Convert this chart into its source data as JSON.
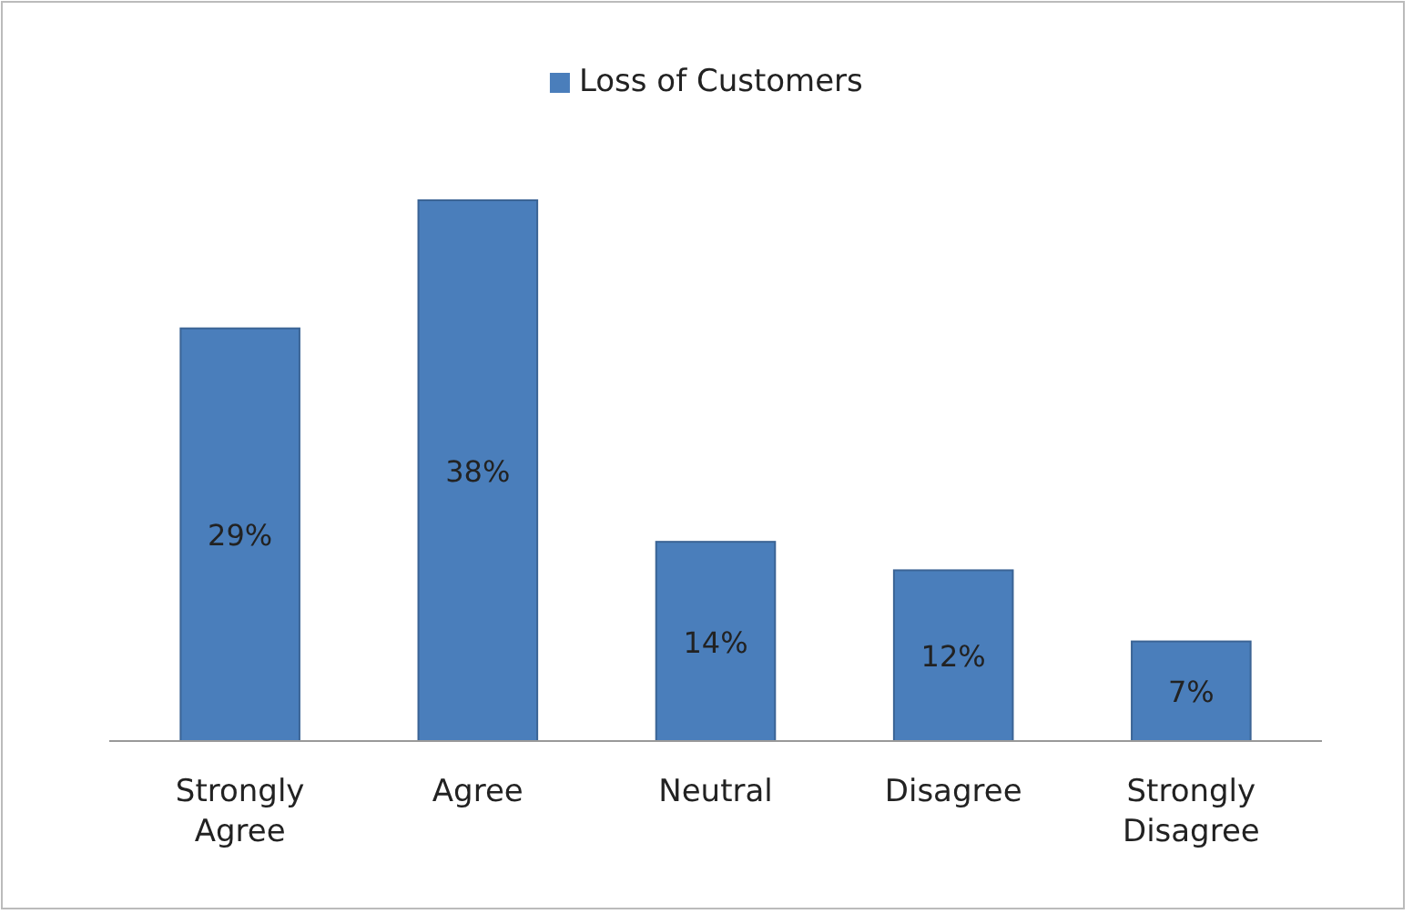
{
  "chart_data": {
    "type": "bar",
    "categories": [
      "Strongly Agree",
      "Agree",
      "Neutral",
      "Disagree",
      "Strongly Disagree"
    ],
    "series": [
      {
        "name": "Loss of Customers",
        "color": "#4a7ebb",
        "values": [
          29,
          38,
          14,
          12,
          7
        ],
        "value_labels": [
          "29%",
          "38%",
          "14%",
          "12%",
          "7%"
        ]
      }
    ],
    "legend": "top",
    "grid": false
  }
}
